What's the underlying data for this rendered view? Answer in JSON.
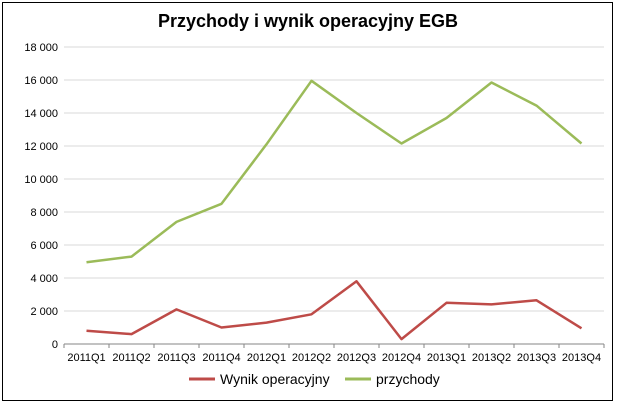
{
  "chart_data": {
    "type": "line",
    "title": "Przychody i wynik operacyjny EGB",
    "categories": [
      "2011Q1",
      "2011Q2",
      "2011Q3",
      "2011Q4",
      "2012Q1",
      "2012Q2",
      "2012Q3",
      "2012Q4",
      "2013Q1",
      "2013Q2",
      "2013Q3",
      "2013Q4"
    ],
    "ylim": [
      0,
      18000
    ],
    "yticks": [
      "0",
      "2 000",
      "4 000",
      "6 000",
      "8 000",
      "10 000",
      "12 000",
      "14 000",
      "16 000",
      "18 000"
    ],
    "grid": true,
    "legend_position": "bottom",
    "series": [
      {
        "name": "Wynik operacyjny",
        "color": "#be4b48",
        "values": [
          800,
          600,
          2100,
          1000,
          1300,
          1800,
          3800,
          300,
          2500,
          2400,
          2650,
          950
        ]
      },
      {
        "name": "przychody",
        "color": "#9bbb59",
        "values": [
          4950,
          5300,
          7400,
          8500,
          12100,
          15950,
          14000,
          12150,
          13700,
          15850,
          14450,
          12150
        ]
      }
    ]
  }
}
